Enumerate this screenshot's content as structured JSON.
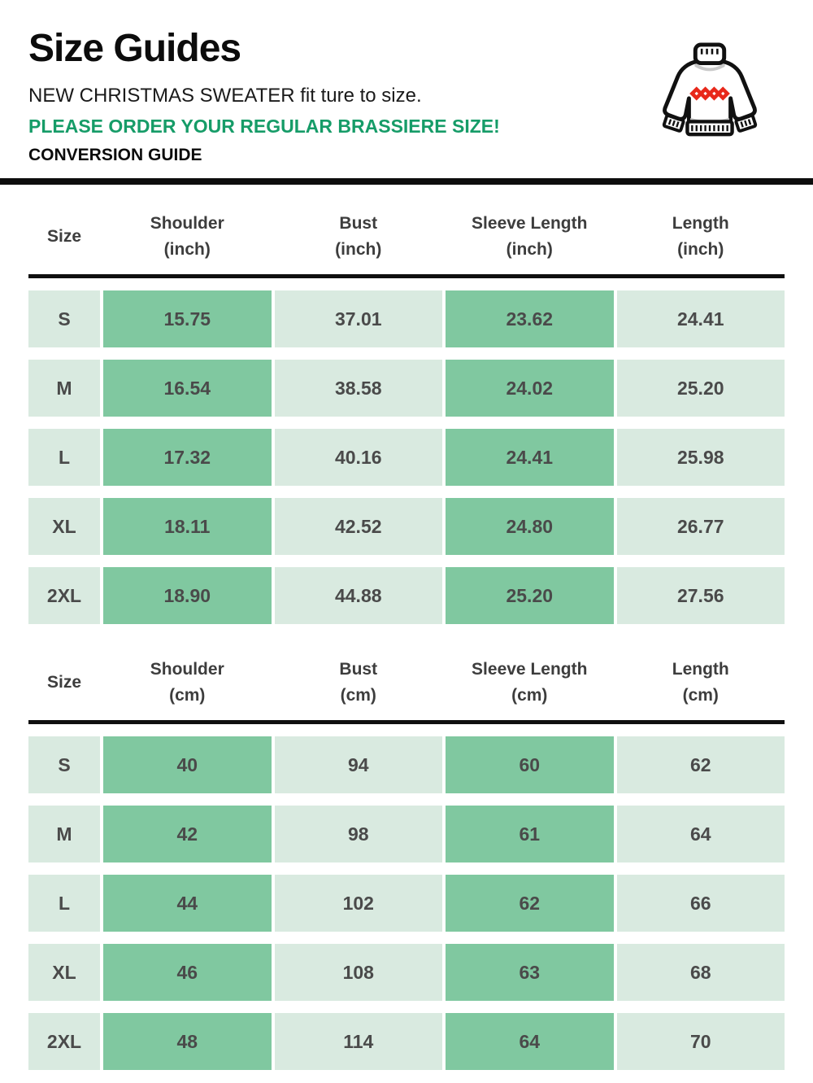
{
  "header": {
    "title": "Size Guides",
    "subtitle": "NEW CHRISTMAS SWEATER fit ture to size.",
    "note": "PLEASE ORDER YOUR REGULAR BRASSIERE SIZE!",
    "conversion": "CONVERSION GUIDE",
    "icon": "christmas-sweater"
  },
  "colors": {
    "note_green": "#169c68",
    "cell_dark_green": "#80c8a0",
    "cell_light_green": "#d9eae0",
    "cell_text": "#4a4a4a",
    "divider_black": "#0d0d0d",
    "sweater_outline": "#111111",
    "sweater_diamond_red": "#e8281a"
  },
  "tables": [
    {
      "unit_label": "(inch)",
      "columns": [
        "Size",
        "Shoulder",
        "Bust",
        "Sleeve Length",
        "Length"
      ],
      "rows": [
        {
          "size": "S",
          "values": [
            "15.75",
            "37.01",
            "23.62",
            "24.41"
          ]
        },
        {
          "size": "M",
          "values": [
            "16.54",
            "38.58",
            "24.02",
            "25.20"
          ]
        },
        {
          "size": "L",
          "values": [
            "17.32",
            "40.16",
            "24.41",
            "25.98"
          ]
        },
        {
          "size": "XL",
          "values": [
            "18.11",
            "42.52",
            "24.80",
            "26.77"
          ]
        },
        {
          "size": "2XL",
          "values": [
            "18.90",
            "44.88",
            "25.20",
            "27.56"
          ]
        }
      ]
    },
    {
      "unit_label": "(cm)",
      "columns": [
        "Size",
        "Shoulder",
        "Bust",
        "Sleeve Length",
        "Length"
      ],
      "rows": [
        {
          "size": "S",
          "values": [
            "40",
            "94",
            "60",
            "62"
          ]
        },
        {
          "size": "M",
          "values": [
            "42",
            "98",
            "61",
            "64"
          ]
        },
        {
          "size": "L",
          "values": [
            "44",
            "102",
            "62",
            "66"
          ]
        },
        {
          "size": "XL",
          "values": [
            "46",
            "108",
            "63",
            "68"
          ]
        },
        {
          "size": "2XL",
          "values": [
            "48",
            "114",
            "64",
            "70"
          ]
        }
      ]
    }
  ],
  "chart_data": [
    {
      "type": "table",
      "title": "Size Guides (inch)",
      "columns": [
        "Size",
        "Shoulder (inch)",
        "Bust (inch)",
        "Sleeve Length (inch)",
        "Length (inch)"
      ],
      "rows": [
        [
          "S",
          15.75,
          37.01,
          23.62,
          24.41
        ],
        [
          "M",
          16.54,
          38.58,
          24.02,
          25.2
        ],
        [
          "L",
          17.32,
          40.16,
          24.41,
          25.98
        ],
        [
          "XL",
          18.11,
          42.52,
          24.8,
          26.77
        ],
        [
          "2XL",
          18.9,
          44.88,
          25.2,
          27.56
        ]
      ]
    },
    {
      "type": "table",
      "title": "Size Guides (cm)",
      "columns": [
        "Size",
        "Shoulder (cm)",
        "Bust (cm)",
        "Sleeve Length (cm)",
        "Length (cm)"
      ],
      "rows": [
        [
          "S",
          40,
          94,
          60,
          62
        ],
        [
          "M",
          42,
          98,
          61,
          64
        ],
        [
          "L",
          44,
          102,
          62,
          66
        ],
        [
          "XL",
          46,
          108,
          63,
          68
        ],
        [
          "2XL",
          48,
          114,
          64,
          70
        ]
      ]
    }
  ]
}
